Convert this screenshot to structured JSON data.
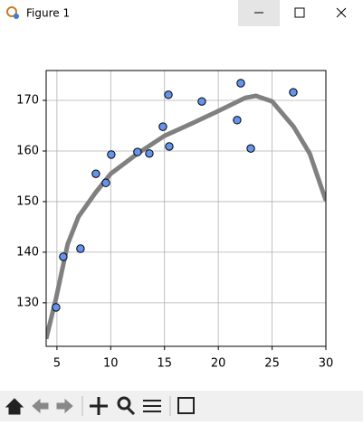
{
  "window": {
    "title": "Figure 1"
  },
  "chart_data": {
    "type": "scatter",
    "xlim": [
      4,
      30
    ],
    "ylim": [
      121.4,
      175.9
    ],
    "xticks": [
      5,
      10,
      15,
      20,
      25,
      30
    ],
    "yticks": [
      130,
      140,
      150,
      160,
      170
    ],
    "grid": true,
    "series": [
      {
        "kind": "line",
        "color": "#808080",
        "x": [
          4,
          4.92,
          6,
          7,
          8.6,
          10,
          12.5,
          15,
          17.5,
          20,
          22.5,
          23.5,
          25,
          27,
          28.5,
          30
        ],
        "values": [
          122.9,
          130.9,
          141.6,
          147,
          151.8,
          155.5,
          159.5,
          163,
          165.4,
          167.9,
          170.5,
          170.9,
          169.8,
          164.8,
          159.5,
          150.2
        ]
      },
      {
        "kind": "points",
        "color": "#6495ed",
        "x": [
          4.92,
          5.59,
          7.19,
          8.62,
          9.55,
          10.05,
          12.49,
          13.59,
          14.85,
          15.36,
          15.44,
          18.47,
          21.75,
          22.09,
          23.02,
          26.97
        ],
        "values": [
          129.1,
          139.1,
          140.7,
          155.5,
          153.7,
          159.3,
          159.8,
          159.5,
          164.8,
          171.1,
          160.9,
          169.8,
          166.1,
          173.4,
          160.5,
          171.6
        ]
      }
    ]
  }
}
